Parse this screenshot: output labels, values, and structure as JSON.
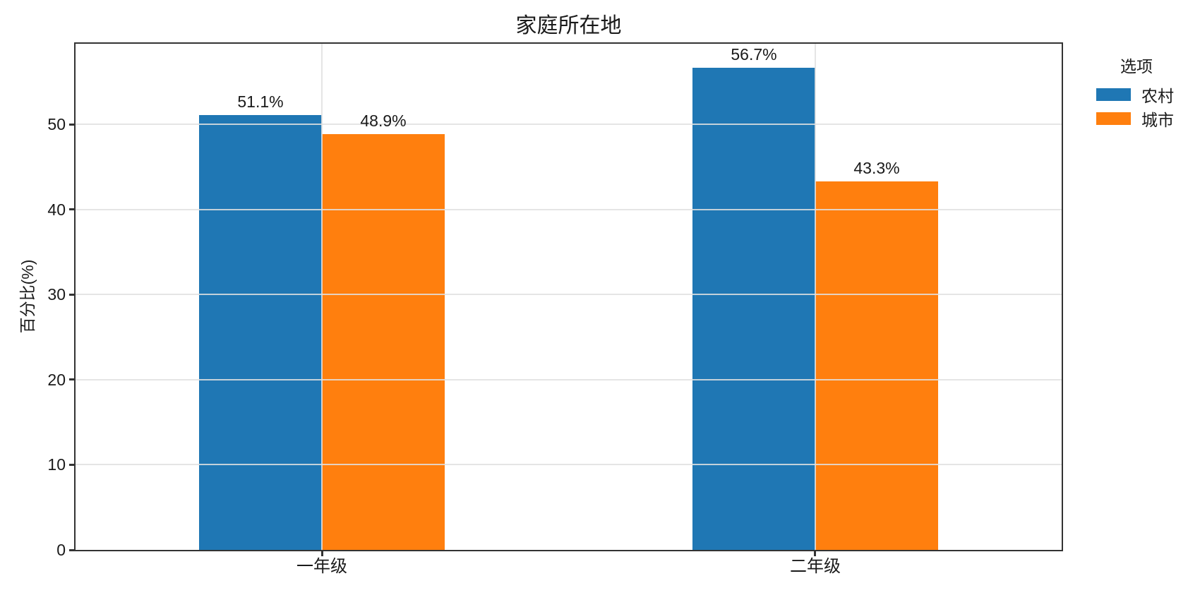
{
  "chart_data": {
    "type": "bar",
    "title": "家庭所在地",
    "ylabel": "百分比(%)",
    "xlabel": "",
    "categories": [
      "一年级",
      "二年级"
    ],
    "series": [
      {
        "name": "农村",
        "color": "#1f77b4",
        "values": [
          51.1,
          56.7
        ],
        "labels": [
          "51.1%",
          "56.7%"
        ]
      },
      {
        "name": "城市",
        "color": "#ff7f0e",
        "values": [
          48.9,
          43.3
        ],
        "labels": [
          "48.9%",
          "43.3%"
        ]
      }
    ],
    "legend_title": "选项",
    "legend_position": "right",
    "ylim": [
      0,
      59.5
    ],
    "yticks": [
      0,
      10,
      20,
      30,
      40,
      50
    ],
    "grid": true,
    "grid_color": "#e0e0e0",
    "axis_color": "#333333",
    "text_color": "#1a1a1a",
    "background_color": "#ffffff"
  }
}
